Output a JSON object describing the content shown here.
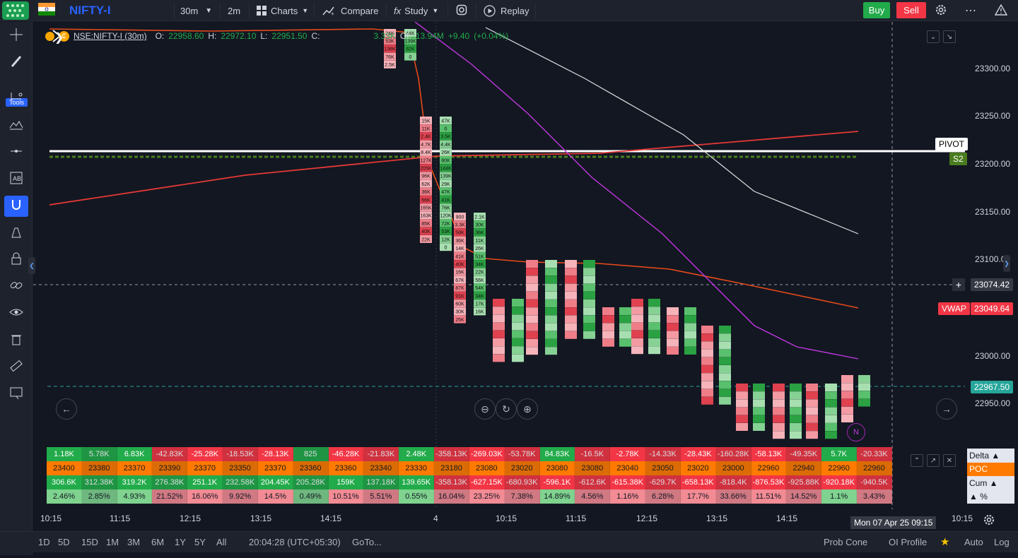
{
  "topbar": {
    "symbol": "NIFTY-I",
    "interval": "30m",
    "interval2": "2m",
    "charts_label": "Charts",
    "compare_label": "Compare",
    "study_label": "Study",
    "replay_label": "Replay",
    "buy_label": "Buy",
    "sell_label": "Sell"
  },
  "lefttools": {
    "tools_label": "Tools"
  },
  "legend": {
    "symbol": "NSE:NIFTY-I (30m)",
    "o_label": "O:",
    "o_value": "22958.60",
    "h_label": "H:",
    "h_value": "22972.10",
    "l_label": "L:",
    "l_value": "22951.50",
    "c_label": "C:",
    "v_value": "3.33K",
    "oi_label": "OI:",
    "oi_value": "13.94M",
    "change": "+9.40",
    "change_pct": "(+0.04%)"
  },
  "price_axis": {
    "labels": [
      "23300.00",
      "23250.00",
      "23200.00",
      "23150.00",
      "23100.00",
      "23000.00",
      "22950.00"
    ],
    "crosshair_price": "23074.42",
    "vwap_label": "VWAP",
    "vwap_price": "23049.64",
    "last_price": "22967.50",
    "pivot_label": "PIVOT",
    "s2_label": "S2"
  },
  "footprint_labels": {
    "c1": [
      "15K",
      "11K",
      "2.4K",
      "4.7K",
      "8.4K",
      "127K",
      "205K",
      "96K",
      "62K",
      "36K",
      "66K",
      "165K",
      "163K",
      "85K",
      "40K",
      "22K"
    ],
    "c2": [
      "47K",
      "0",
      "3.5K",
      "4.4K",
      "26K",
      "80K",
      "144K",
      "139K",
      "29K",
      "47K",
      "41K",
      "76K",
      "120K",
      "72K",
      "53K",
      "12K",
      "0"
    ],
    "c3": [
      "900",
      "3.3K",
      "58K",
      "36K",
      "14K",
      "41K",
      "40K",
      "16K",
      "67K",
      "87K",
      "91K",
      "60K",
      "30K",
      "25K"
    ],
    "c4": [
      "2.1K",
      "30K",
      "36K",
      "11K",
      "26K",
      "51K",
      "34K",
      "22K",
      "56K",
      "54K",
      "34K",
      "17K",
      "16K"
    ],
    "top1": [
      "24K",
      "53K",
      "138K",
      "76K",
      "2.5K"
    ],
    "top2": [
      "44K",
      "139K",
      "82K",
      "0"
    ]
  },
  "table": {
    "delta": [
      "1.18K",
      "5.78K",
      "6.83K",
      "-42.83K",
      "-25.28K",
      "-18.53K",
      "-28.13K",
      "825",
      "-46.28K",
      "-21.83K",
      "2.48K",
      "-358.13K",
      "-269.03K",
      "-53.78K",
      "84.83K",
      "-16.5K",
      "-2.78K",
      "-14.33K",
      "-28.43K",
      "-160.28K",
      "-58.13K",
      "-49.35K",
      "5.7K",
      "-20.33K"
    ],
    "poc": [
      "23400",
      "23380",
      "23370",
      "23390",
      "23370",
      "23350",
      "23370",
      "23360",
      "23360",
      "23340",
      "23330",
      "23180",
      "23080",
      "23020",
      "23080",
      "23080",
      "23040",
      "23050",
      "23020",
      "23000",
      "22960",
      "22940",
      "22960",
      "22960"
    ],
    "cum": [
      "306.6K",
      "312.38K",
      "319.2K",
      "276.38K",
      "251.1K",
      "232.58K",
      "204.45K",
      "205.28K",
      "159K",
      "137.18K",
      "139.65K",
      "-358.13K",
      "-627.15K",
      "-680.93K",
      "-596.1K",
      "-612.6K",
      "-615.38K",
      "-629.7K",
      "-658.13K",
      "-818.4K",
      "-876.53K",
      "-925.88K",
      "-920.18K",
      "-940.5K"
    ],
    "pct": [
      "2.46%",
      "2.85%",
      "4.93%",
      "21.52%",
      "16.06%",
      "9.92%",
      "14.5%",
      "0.49%",
      "10.51%",
      "5.51%",
      "0.55%",
      "16.04%",
      "23.25%",
      "7.38%",
      "14.89%",
      "4.56%",
      "1.16%",
      "6.28%",
      "17.7%",
      "33.66%",
      "11.51%",
      "14.52%",
      "1.1%",
      "3.43%"
    ],
    "side": {
      "delta": "Delta ▲",
      "poc": "POC",
      "cum": "Cum ▲",
      "pct": "▲ %"
    }
  },
  "time_axis": {
    "labels": [
      "10:15",
      "11:15",
      "12:15",
      "13:15",
      "14:15",
      "4",
      "10:15",
      "11:15",
      "12:15",
      "13:15",
      "14:15",
      "10:15"
    ],
    "crosshair_time": "Mon 07 Apr 25 09:15"
  },
  "bottombar": {
    "ranges": [
      "1D",
      "5D",
      "15D",
      "1M",
      "3M",
      "6M",
      "1Y",
      "5Y",
      "All"
    ],
    "clock": "20:04:28 (UTC+05:30)",
    "goto": "GoTo...",
    "prob_cone": "Prob Cone",
    "oi_profile": "OI Profile",
    "auto": "Auto",
    "log": "Log"
  },
  "colors": {
    "bg": "#131722",
    "up": "#22ab4a",
    "down": "#f23645",
    "poc": "#ff7a00",
    "vwap": "#f23645"
  }
}
